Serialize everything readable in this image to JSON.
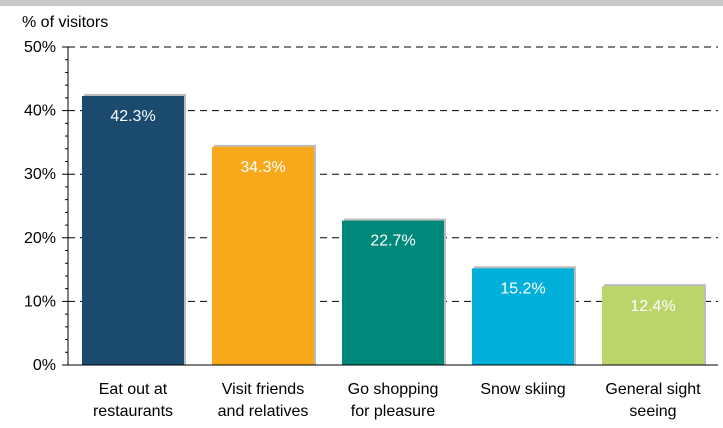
{
  "chart_data": {
    "type": "bar",
    "title": "",
    "ylabel": "% of visitors",
    "xlabel": "",
    "categories": [
      [
        "Eat out at",
        "restaurants"
      ],
      [
        "Visit friends",
        "and relatives"
      ],
      [
        "Go shopping",
        "for pleasure"
      ],
      [
        "Snow skiing"
      ],
      [
        "General sight",
        "seeing"
      ]
    ],
    "values": [
      42.3,
      34.3,
      22.7,
      15.2,
      12.4
    ],
    "value_labels": [
      "42.3%",
      "34.3%",
      "22.7%",
      "15.2%",
      "12.4%"
    ],
    "colors": [
      "#1a4a6e",
      "#f7a81b",
      "#00897b",
      "#00b0d8",
      "#bcd56a"
    ],
    "ylim": [
      0,
      50
    ],
    "yticks": [
      {
        "value": 0,
        "label": "0%"
      },
      {
        "value": 10,
        "label": "10%"
      },
      {
        "value": 20,
        "label": "20%"
      },
      {
        "value": 30,
        "label": "30%"
      },
      {
        "value": 40,
        "label": "40%"
      },
      {
        "value": 50,
        "label": "50%"
      }
    ],
    "grid": true,
    "legend": "none"
  }
}
